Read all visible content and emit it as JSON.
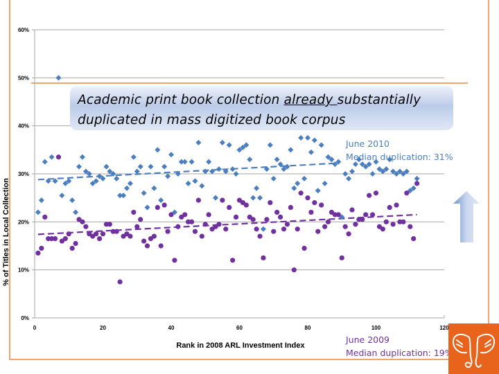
{
  "chart_data": {
    "type": "scatter",
    "title": "Academic print book collection already substantially duplicated in mass digitized book corpus",
    "title_parts": {
      "before": "Academic print book collection ",
      "underlined": "already ",
      "after": "substantially",
      "line2": "duplicated in mass digitized book corpus"
    },
    "xlabel": "Rank in 2008 ARL Investment Index",
    "ylabel": "% of Titles in Local Collection",
    "xlim": [
      0,
      120
    ],
    "ylim": [
      0,
      60
    ],
    "x_ticks": [
      "0",
      "20",
      "40",
      "60",
      "80",
      "100",
      "120"
    ],
    "y_ticks": [
      "0%",
      "10%",
      "20%",
      "30%",
      "40%",
      "50%",
      "60%"
    ],
    "grid": "horizontal",
    "series": [
      {
        "name": "June 2010",
        "annotation": [
          "June 2010",
          "Median duplication: 31%"
        ],
        "marker": "diamond",
        "color": "#4a7ebf",
        "trend": {
          "x": [
            1,
            88
          ],
          "y": [
            28.8,
            32.2
          ]
        },
        "values": [
          22,
          24.5,
          32.5,
          28.5,
          33.5,
          28.5,
          50,
          25.5,
          28,
          28.5,
          24.5,
          22,
          31.5,
          33.5,
          30.5,
          30,
          28,
          28.5,
          29.5,
          29,
          31.5,
          30.5,
          30,
          29,
          25.5,
          25.5,
          27,
          28,
          33.5,
          30.5,
          31.5,
          26,
          23,
          31.5,
          27,
          35,
          24.5,
          31.5,
          29.5,
          34,
          22,
          30,
          32.5,
          32.5,
          28,
          32.5,
          28.5,
          36.5,
          27.5,
          30.5,
          32.5,
          30.5,
          25,
          31,
          36.5,
          30.5,
          36,
          31,
          30,
          35,
          35.5,
          36,
          33,
          25,
          27,
          25,
          18.5,
          31,
          36,
          29,
          33,
          32,
          31,
          31.5,
          35,
          27,
          28,
          37.5,
          29,
          37.5,
          34.5,
          37,
          26.5,
          36,
          28,
          33.5,
          33,
          32,
          32.5,
          21,
          30,
          29,
          30.5,
          32,
          33,
          32,
          31.5,
          32,
          30,
          32.5,
          31,
          30.5,
          31,
          33,
          30.5,
          30,
          30.5,
          30,
          30.5,
          26.5,
          27,
          29
        ]
      },
      {
        "name": "June 2009",
        "annotation": [
          "June 2009",
          "Median duplication: 19%"
        ],
        "marker": "circle",
        "color": "#7030a0",
        "trend": {
          "x": [
            1,
            112
          ],
          "y": [
            17.4,
            21.5
          ]
        },
        "values": [
          13.5,
          14.5,
          21,
          16.5,
          16.5,
          16.5,
          33.5,
          16,
          16.5,
          17.5,
          14.5,
          15.5,
          20.5,
          20,
          19,
          17.5,
          17,
          17.5,
          16.5,
          17.5,
          19.5,
          19.5,
          18,
          18,
          7.5,
          17,
          17.5,
          17,
          22,
          19,
          20.5,
          16,
          15,
          16.5,
          17,
          23,
          15,
          23.5,
          18,
          21.5,
          12,
          19,
          21,
          21.5,
          20,
          20,
          18,
          24.5,
          17,
          19.5,
          21.5,
          18.5,
          19,
          19.5,
          24.5,
          18.5,
          23,
          12,
          21,
          24.5,
          24,
          23.5,
          21,
          20.5,
          18.5,
          17,
          12.5,
          20.5,
          24,
          18,
          22,
          21,
          18.5,
          19.5,
          23,
          10,
          18.5,
          26,
          14.5,
          25,
          22,
          24,
          18,
          23.5,
          19,
          20,
          22,
          21.5,
          21.5,
          12.5,
          19,
          17.5,
          22.5,
          19.5,
          20.5,
          20.5,
          21.5,
          25.5,
          21.5,
          26,
          19,
          18.5,
          20,
          23,
          19.5,
          23.5,
          20,
          20,
          26,
          19,
          16.5,
          28
        ]
      }
    ]
  },
  "colors": {
    "frame": "#f4a46a",
    "logo_bg": "#e8631c",
    "grid": "#a6a6a6"
  }
}
